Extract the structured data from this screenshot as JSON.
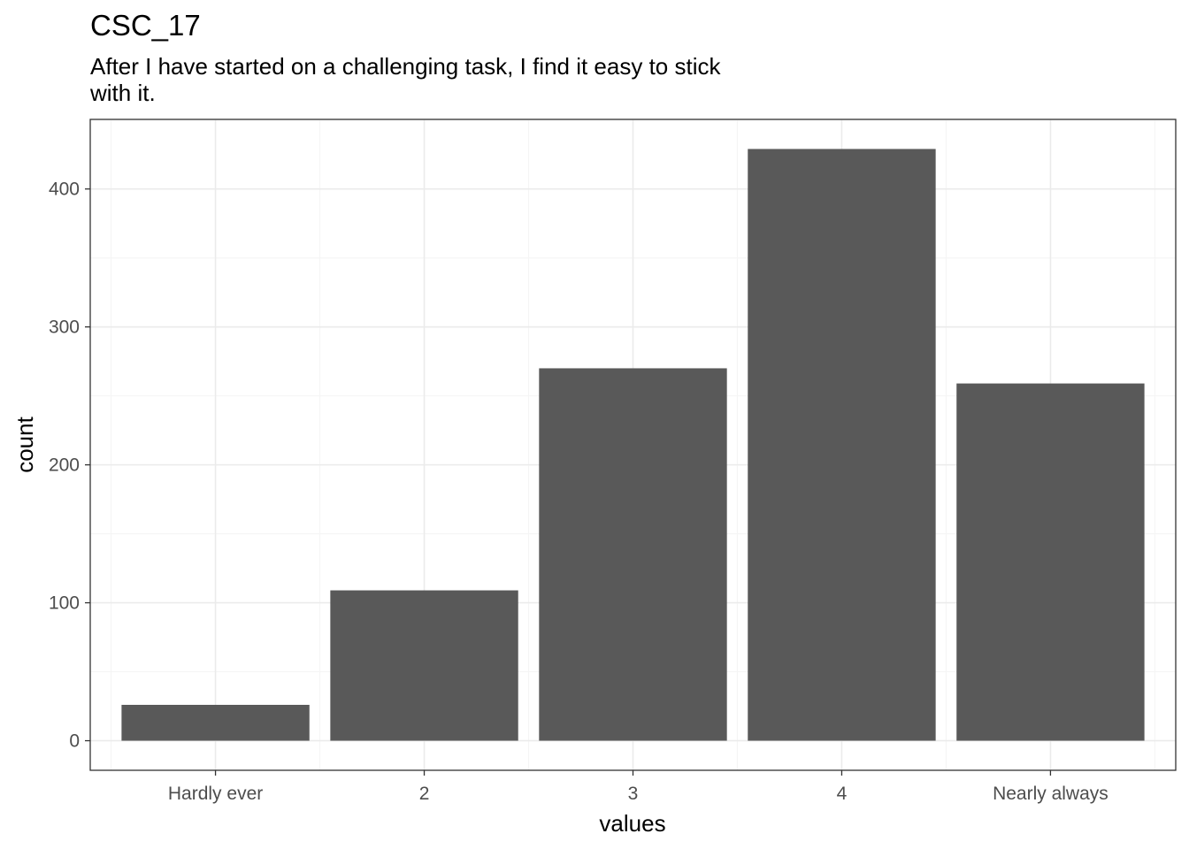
{
  "chart_data": {
    "type": "bar",
    "title": "CSC_17",
    "subtitle_lines": [
      "After I have started on a challenging task, I find it easy to stick",
      "with it."
    ],
    "xlabel": "values",
    "ylabel": "count",
    "categories": [
      "Hardly ever",
      "2",
      "3",
      "4",
      "Nearly always"
    ],
    "values": [
      26,
      109,
      270,
      429,
      259
    ],
    "yticks": [
      0,
      100,
      200,
      300,
      400
    ],
    "ytick_labels": [
      "0",
      "100",
      "200",
      "300",
      "400"
    ],
    "ylim": [
      -21.45,
      450.45
    ],
    "grid": true,
    "theme": "bw",
    "colors": {
      "bar": "#595959",
      "grid_major": "#ebebeb",
      "grid_minor": "#f5f5f5",
      "panel_border": "#333333",
      "tick_text": "#4d4d4d"
    }
  }
}
